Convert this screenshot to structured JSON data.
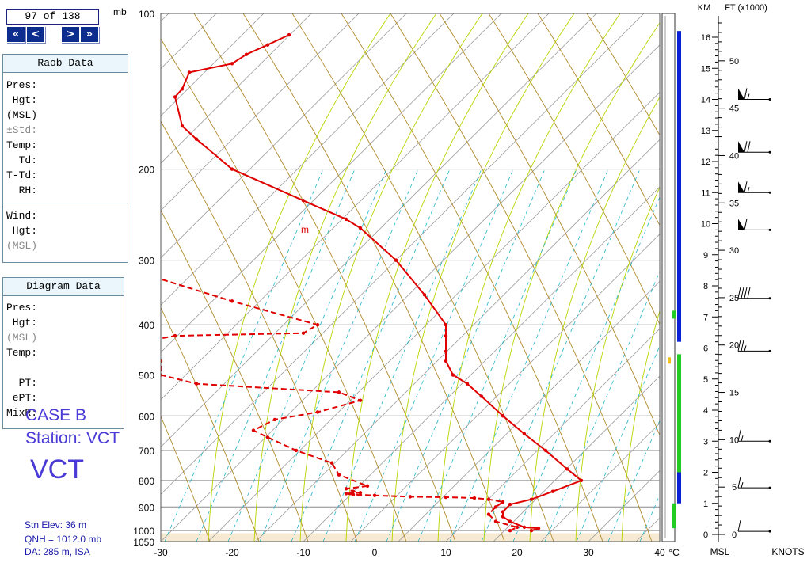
{
  "nav": {
    "counter": "97 of 138",
    "pressure_unit": "mb",
    "buttons": [
      {
        "name": "first-button",
        "label": "«"
      },
      {
        "name": "prev-button",
        "label": "<"
      },
      {
        "name": "next-button",
        "label": ">"
      },
      {
        "name": "last-button",
        "label": "»"
      }
    ]
  },
  "raob_panel": {
    "title": "Raob Data",
    "rows": [
      {
        "label": "Pres:",
        "dim": false
      },
      {
        "label": " Hgt:",
        "dim": false
      },
      {
        "label": "(MSL)",
        "dim": false
      },
      {
        "label": "±Std:",
        "dim": true
      },
      {
        "label": "Temp:",
        "dim": false
      },
      {
        "label": "  Td:",
        "dim": false
      },
      {
        "label": "T-Td:",
        "dim": false
      },
      {
        "label": "  RH:",
        "dim": false
      }
    ],
    "wind_rows": [
      {
        "label": "Wind:",
        "dim": false
      },
      {
        "label": " Hgt:",
        "dim": false
      },
      {
        "label": "(MSL)",
        "dim": true
      }
    ]
  },
  "diagram_panel": {
    "title": "Diagram Data",
    "rows": [
      {
        "label": "Pres:",
        "dim": false
      },
      {
        "label": " Hgt:",
        "dim": false
      },
      {
        "label": "(MSL)",
        "dim": true
      },
      {
        "label": "Temp:",
        "dim": false
      },
      {
        "label": "",
        "dim": false
      },
      {
        "label": "  PT:",
        "dim": false
      },
      {
        "label": " ePT:",
        "dim": false
      },
      {
        "label": "MixR:",
        "dim": false
      }
    ]
  },
  "case": {
    "line1": "CASE B",
    "line2": "Station: VCT",
    "line3": "VCT"
  },
  "footer": {
    "elev": "Stn Elev: 36 m",
    "qnh": "QNH = 1012.0 mb",
    "da": "DA: 285 m, ISA"
  },
  "colors": {
    "temp": "#e00000",
    "isotherm": "#8a8a8a",
    "dry_adiabat": "#b08a2a",
    "moist_adiabat": "#b8d400",
    "mixing_ratio": "#21b5c8",
    "scale_blue": "#0b1fd6",
    "scale_green": "#22cc22",
    "nav_button": "#0d2d8e"
  },
  "chart_data": {
    "type": "line",
    "title": "",
    "xlabel": "°C",
    "ylabel": "mb",
    "x_range": [
      -30,
      40
    ],
    "pressure_range": [
      1050,
      100
    ],
    "skew": true,
    "x_ticks": [
      -30,
      -20,
      -10,
      0,
      10,
      20,
      30,
      40
    ],
    "pressure_ticks": [
      100,
      200,
      300,
      400,
      500,
      600,
      700,
      800,
      900,
      1000,
      1050
    ],
    "annotations": [
      "m"
    ],
    "series": [
      {
        "key": "temperature",
        "style": "solid",
        "points": [
          [
            1000,
            22
          ],
          [
            990,
            23
          ],
          [
            985,
            21
          ],
          [
            960,
            19
          ],
          [
            940,
            18
          ],
          [
            920,
            18
          ],
          [
            890,
            19
          ],
          [
            870,
            22
          ],
          [
            840,
            25
          ],
          [
            800,
            29
          ],
          [
            760,
            27
          ],
          [
            700,
            24
          ],
          [
            650,
            21
          ],
          [
            600,
            18
          ],
          [
            550,
            15
          ],
          [
            520,
            13
          ],
          [
            500,
            11
          ],
          [
            470,
            10
          ],
          [
            450,
            10
          ],
          [
            420,
            10
          ],
          [
            400,
            10
          ],
          [
            350,
            7
          ],
          [
            300,
            3
          ],
          [
            260,
            -2
          ],
          [
            250,
            -4
          ],
          [
            230,
            -10
          ],
          [
            200,
            -20
          ],
          [
            175,
            -25
          ],
          [
            165,
            -27
          ],
          [
            145,
            -28
          ],
          [
            140,
            -27
          ],
          [
            130,
            -26
          ],
          [
            125,
            -20
          ],
          [
            120,
            -18
          ],
          [
            115,
            -15
          ],
          [
            110,
            -12
          ]
        ]
      },
      {
        "key": "dewpoint",
        "style": "dashed",
        "points": [
          [
            1000,
            19
          ],
          [
            985,
            20
          ],
          [
            960,
            17
          ],
          [
            930,
            16
          ],
          [
            900,
            17
          ],
          [
            880,
            18
          ],
          [
            870,
            16
          ],
          [
            865,
            14
          ],
          [
            862,
            10
          ],
          [
            860,
            5
          ],
          [
            855,
            0
          ],
          [
            852,
            -3
          ],
          [
            848,
            -4
          ],
          [
            845,
            -2
          ],
          [
            840,
            -3
          ],
          [
            830,
            -4
          ],
          [
            820,
            -1
          ],
          [
            780,
            -5
          ],
          [
            740,
            -6
          ],
          [
            700,
            -11
          ],
          [
            660,
            -15
          ],
          [
            640,
            -17
          ],
          [
            610,
            -14
          ],
          [
            590,
            -8
          ],
          [
            560,
            -2
          ],
          [
            540,
            -5
          ],
          [
            520,
            -25
          ],
          [
            500,
            -30
          ],
          [
            470,
            -30
          ],
          [
            440,
            -32
          ],
          [
            430,
            -32
          ],
          [
            420,
            -28
          ],
          [
            415,
            -10
          ],
          [
            400,
            -8
          ],
          [
            360,
            -20
          ],
          [
            320,
            -32
          ],
          [
            300,
            -40
          ],
          [
            290,
            -43
          ]
        ]
      }
    ],
    "wind_scale": {
      "km_label": "KM",
      "ft_label": "FT (x1000)",
      "msl_label": "MSL",
      "knots_label": "KNOTS",
      "km_ticks": [
        0,
        1,
        2,
        3,
        4,
        5,
        6,
        7,
        8,
        9,
        10,
        11,
        12,
        13,
        14,
        15,
        16
      ],
      "ft_ticks": [
        0,
        5,
        10,
        15,
        20,
        25,
        30,
        35,
        40,
        45,
        50
      ],
      "barbs_km": [
        {
          "km": 0.1,
          "kt": 10
        },
        {
          "km": 1.5,
          "kt": 15
        },
        {
          "km": 3.0,
          "kt": 15
        },
        {
          "km": 5.9,
          "kt": 25
        },
        {
          "km": 7.6,
          "kt": 40
        },
        {
          "km": 9.8,
          "kt": 60
        },
        {
          "km": 11.0,
          "kt": 65
        },
        {
          "km": 12.3,
          "kt": 70
        },
        {
          "km": 14.0,
          "kt": 65
        }
      ]
    }
  }
}
